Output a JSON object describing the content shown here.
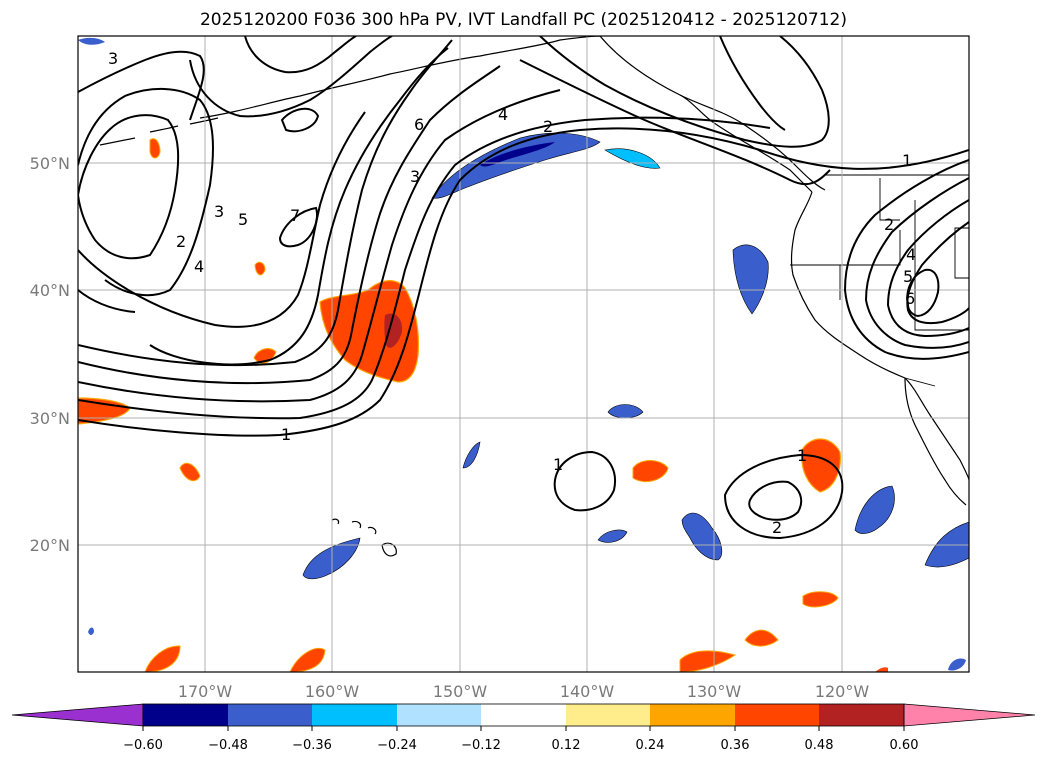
{
  "title": "2025120200 F036 300 hPa PV, IVT Landfall PC (2025120412 - 2025120712)",
  "map": {
    "extent": {
      "lon_min": -180,
      "lon_max": -110,
      "lat_min": 10,
      "lat_max": 60
    },
    "lat_ticks": [
      {
        "value": 20,
        "label": "20°N"
      },
      {
        "value": 30,
        "label": "30°N"
      },
      {
        "value": 40,
        "label": "40°N"
      },
      {
        "value": 50,
        "label": "50°N"
      }
    ],
    "lon_ticks": [
      {
        "value": -170,
        "label": "170°W"
      },
      {
        "value": -160,
        "label": "160°W"
      },
      {
        "value": -150,
        "label": "150°W"
      },
      {
        "value": -140,
        "label": "140°W"
      },
      {
        "value": -130,
        "label": "130°W"
      },
      {
        "value": -120,
        "label": "120°W"
      }
    ],
    "grid": true,
    "contour_labels": [
      "1",
      "2",
      "3",
      "4",
      "5",
      "6",
      "7",
      "2",
      "3",
      "4",
      "1",
      "2",
      "4",
      "5",
      "6",
      "1",
      "1",
      "2",
      "3"
    ]
  },
  "colorbar": {
    "ticks": [
      "−0.60",
      "−0.48",
      "−0.36",
      "−0.24",
      "−0.12",
      "0.12",
      "0.24",
      "0.36",
      "0.48",
      "0.60"
    ],
    "colors": [
      "#9b30d0",
      "#00008b",
      "#3a5fcd",
      "#00bfff",
      "#b0e2ff",
      "#ffffff",
      "#ffec8b",
      "#ffa500",
      "#ff4500",
      "#b22222",
      "#ff82ab"
    ],
    "extend": "both"
  }
}
